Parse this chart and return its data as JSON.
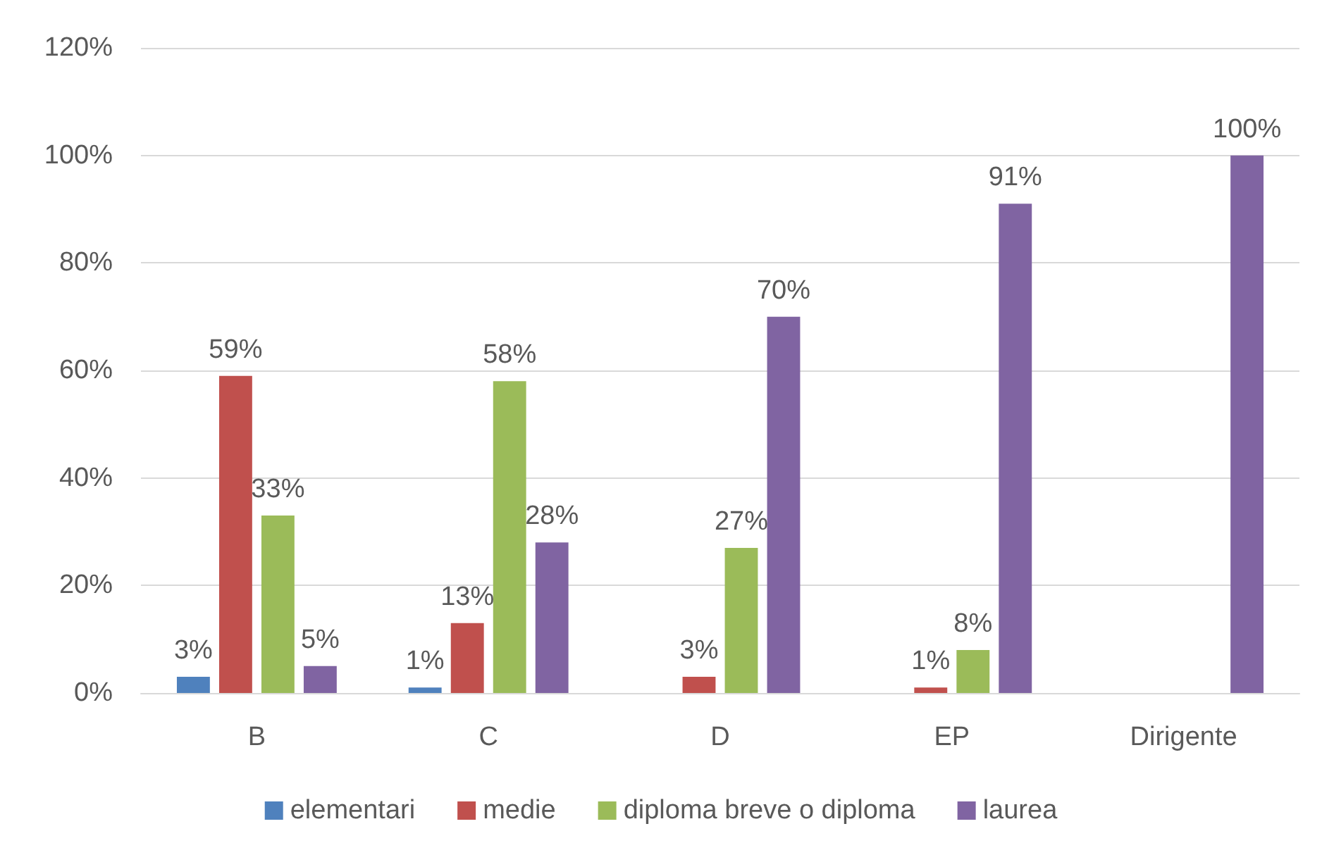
{
  "chart_data": {
    "type": "bar",
    "categories": [
      "B",
      "C",
      "D",
      "EP",
      "Dirigente"
    ],
    "series": [
      {
        "name": "elementari",
        "color": "#4f81bd",
        "values": [
          3,
          1,
          null,
          null,
          null
        ],
        "value_labels": [
          "3%",
          "1%",
          null,
          null,
          null
        ]
      },
      {
        "name": "medie",
        "color": "#c0504d",
        "values": [
          59,
          13,
          3,
          1,
          null
        ],
        "value_labels": [
          "59%",
          "13%",
          "3%",
          "1%",
          null
        ]
      },
      {
        "name": "diploma breve o diploma",
        "color": "#9bbb59",
        "values": [
          33,
          58,
          27,
          8,
          null
        ],
        "value_labels": [
          "33%",
          "58%",
          "27%",
          "8%",
          null
        ]
      },
      {
        "name": "laurea",
        "color": "#8064a2",
        "values": [
          5,
          28,
          70,
          91,
          100
        ],
        "value_labels": [
          "5%",
          "28%",
          "70%",
          "91%",
          "100%"
        ]
      }
    ],
    "ylim": [
      0,
      120
    ],
    "yticks": [
      {
        "value": 0,
        "label": "0%"
      },
      {
        "value": 20,
        "label": "20%"
      },
      {
        "value": 40,
        "label": "40%"
      },
      {
        "value": 60,
        "label": "60%"
      },
      {
        "value": 80,
        "label": "80%"
      },
      {
        "value": 100,
        "label": "100%"
      },
      {
        "value": 120,
        "label": "120%"
      }
    ],
    "grid": "y",
    "legend": "bottom"
  }
}
